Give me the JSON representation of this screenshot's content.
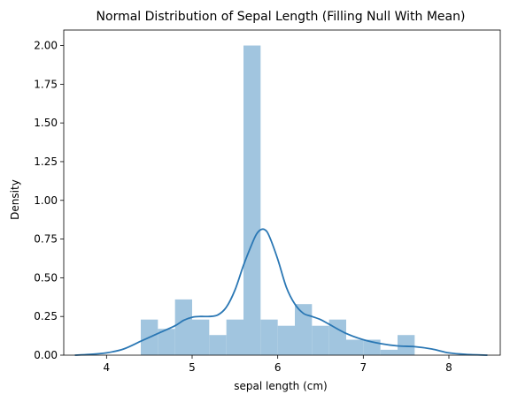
{
  "chart_data": {
    "type": "bar",
    "title": "Normal Distribution of Sepal Length (Filling Null With Mean)",
    "xlabel": "sepal length (cm)",
    "ylabel": "Density",
    "xlim": [
      3.5,
      8.6
    ],
    "ylim": [
      0,
      2.1
    ],
    "xticks": [
      4,
      5,
      6,
      7,
      8
    ],
    "xtick_labels": [
      "4",
      "5",
      "6",
      "7",
      "8"
    ],
    "yticks": [
      0,
      0.25,
      0.5,
      0.75,
      1.0,
      1.25,
      1.5,
      1.75,
      2.0
    ],
    "ytick_labels": [
      "0.00",
      "0.25",
      "0.50",
      "0.75",
      "1.00",
      "1.25",
      "1.50",
      "1.75",
      "2.00"
    ],
    "grid": false,
    "bar_color": "#a1c5df",
    "line_color": "#2a77b4",
    "series": [
      {
        "type": "histogram",
        "bins": [
          {
            "x0": 4.4,
            "x1": 4.6,
            "value": 0.23
          },
          {
            "x0": 4.6,
            "x1": 4.8,
            "value": 0.17
          },
          {
            "x0": 4.8,
            "x1": 5.0,
            "value": 0.36
          },
          {
            "x0": 5.0,
            "x1": 5.2,
            "value": 0.23
          },
          {
            "x0": 5.2,
            "x1": 5.4,
            "value": 0.13
          },
          {
            "x0": 5.4,
            "x1": 5.6,
            "value": 0.23
          },
          {
            "x0": 5.6,
            "x1": 5.8,
            "value": 2.0
          },
          {
            "x0": 5.8,
            "x1": 6.0,
            "value": 0.23
          },
          {
            "x0": 6.0,
            "x1": 6.2,
            "value": 0.19
          },
          {
            "x0": 6.2,
            "x1": 6.4,
            "value": 0.33
          },
          {
            "x0": 6.4,
            "x1": 6.6,
            "value": 0.19
          },
          {
            "x0": 6.6,
            "x1": 6.8,
            "value": 0.23
          },
          {
            "x0": 6.8,
            "x1": 7.0,
            "value": 0.1
          },
          {
            "x0": 7.0,
            "x1": 7.2,
            "value": 0.1
          },
          {
            "x0": 7.2,
            "x1": 7.4,
            "value": 0.035
          },
          {
            "x0": 7.4,
            "x1": 7.6,
            "value": 0.13
          }
        ]
      },
      {
        "type": "kde",
        "x": [
          3.63,
          3.8,
          4.0,
          4.2,
          4.4,
          4.6,
          4.8,
          4.9,
          5.0,
          5.1,
          5.2,
          5.3,
          5.4,
          5.5,
          5.6,
          5.7,
          5.75,
          5.8,
          5.85,
          5.9,
          6.0,
          6.1,
          6.2,
          6.3,
          6.4,
          6.5,
          6.6,
          6.8,
          7.0,
          7.2,
          7.4,
          7.6,
          7.8,
          8.0,
          8.2,
          8.45
        ],
        "y": [
          0.0,
          0.005,
          0.015,
          0.04,
          0.09,
          0.14,
          0.19,
          0.225,
          0.245,
          0.25,
          0.25,
          0.26,
          0.31,
          0.42,
          0.58,
          0.72,
          0.78,
          0.81,
          0.81,
          0.77,
          0.62,
          0.44,
          0.33,
          0.27,
          0.25,
          0.23,
          0.2,
          0.14,
          0.1,
          0.075,
          0.06,
          0.055,
          0.04,
          0.015,
          0.005,
          0.0
        ]
      }
    ]
  }
}
